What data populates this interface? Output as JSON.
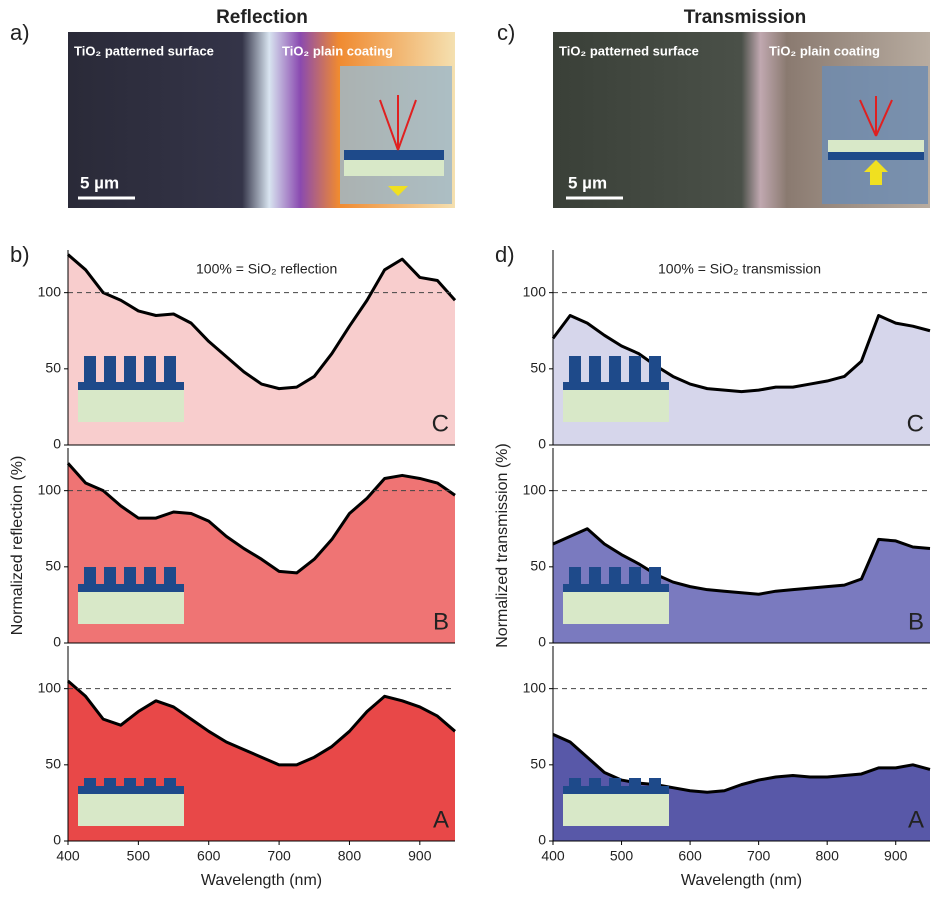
{
  "images": [
    {
      "label": "a)",
      "title": "Reflection",
      "left_text": "TiO₂ patterned surface",
      "right_text": "TiO₂ plain coating",
      "scale": "5 µm"
    },
    {
      "label": "c)",
      "title": "Transmission",
      "left_text": "TiO₂ patterned surface",
      "right_text": "TiO₂ plain coating",
      "scale": "5 µm"
    }
  ],
  "chart_data": [
    {
      "type": "area",
      "panel_label": "b)",
      "annotation": "100% = SiO₂ reflection",
      "sample": "C",
      "color": "#f8cdcd",
      "x": [
        400,
        425,
        450,
        475,
        500,
        525,
        550,
        575,
        600,
        625,
        650,
        675,
        700,
        725,
        750,
        775,
        800,
        825,
        850,
        875,
        900,
        925,
        950
      ],
      "values": [
        125,
        115,
        100,
        95,
        88,
        85,
        86,
        80,
        68,
        58,
        48,
        40,
        37,
        38,
        45,
        60,
        78,
        95,
        115,
        122,
        110,
        108,
        95
      ],
      "xlim": [
        400,
        950
      ],
      "ylim": [
        0,
        128
      ],
      "yticks": [
        0,
        50,
        100
      ],
      "hline": 100
    },
    {
      "type": "area",
      "sample": "B",
      "color": "#ef7474",
      "ylabel": "Normalized reflection (%)",
      "x": [
        400,
        425,
        450,
        475,
        500,
        525,
        550,
        575,
        600,
        625,
        650,
        675,
        700,
        725,
        750,
        775,
        800,
        825,
        850,
        875,
        900,
        925,
        950
      ],
      "values": [
        118,
        105,
        100,
        90,
        82,
        82,
        86,
        85,
        80,
        70,
        62,
        55,
        47,
        46,
        55,
        68,
        85,
        95,
        108,
        110,
        108,
        105,
        97
      ],
      "xlim": [
        400,
        950
      ],
      "ylim": [
        0,
        128
      ],
      "yticks": [
        0,
        50,
        100
      ],
      "hline": 100
    },
    {
      "type": "area",
      "sample": "A",
      "color": "#e84848",
      "xlabel": "Wavelength (nm)",
      "x": [
        400,
        425,
        450,
        475,
        500,
        525,
        550,
        575,
        600,
        625,
        650,
        675,
        700,
        725,
        750,
        775,
        800,
        825,
        850,
        875,
        900,
        925,
        950
      ],
      "values": [
        105,
        95,
        80,
        76,
        85,
        92,
        88,
        80,
        72,
        65,
        60,
        55,
        50,
        50,
        55,
        62,
        72,
        85,
        95,
        92,
        88,
        82,
        72
      ],
      "xlim": [
        400,
        950
      ],
      "ylim": [
        0,
        128
      ],
      "yticks": [
        0,
        50,
        100
      ],
      "xticks": [
        400,
        500,
        600,
        700,
        800,
        900
      ],
      "hline": 100
    },
    {
      "type": "area",
      "panel_label": "d)",
      "annotation": "100% = SiO₂ transmission",
      "sample": "C",
      "color": "#d6d6eb",
      "x": [
        400,
        425,
        450,
        475,
        500,
        525,
        550,
        575,
        600,
        625,
        650,
        675,
        700,
        725,
        750,
        775,
        800,
        825,
        850,
        875,
        900,
        925,
        950
      ],
      "values": [
        70,
        85,
        80,
        72,
        65,
        60,
        52,
        45,
        40,
        37,
        36,
        35,
        36,
        38,
        38,
        40,
        42,
        45,
        55,
        85,
        80,
        78,
        75
      ],
      "xlim": [
        400,
        950
      ],
      "ylim": [
        0,
        128
      ],
      "yticks": [
        0,
        50,
        100
      ],
      "hline": 100
    },
    {
      "type": "area",
      "sample": "B",
      "color": "#7a7abf",
      "ylabel": "Normalized transmission (%)",
      "x": [
        400,
        425,
        450,
        475,
        500,
        525,
        550,
        575,
        600,
        625,
        650,
        675,
        700,
        725,
        750,
        775,
        800,
        825,
        850,
        875,
        900,
        925,
        950
      ],
      "values": [
        65,
        70,
        75,
        65,
        58,
        52,
        45,
        40,
        37,
        35,
        34,
        33,
        32,
        34,
        35,
        36,
        37,
        38,
        42,
        68,
        67,
        63,
        62
      ],
      "xlim": [
        400,
        950
      ],
      "ylim": [
        0,
        128
      ],
      "yticks": [
        0,
        50,
        100
      ],
      "hline": 100
    },
    {
      "type": "area",
      "sample": "A",
      "color": "#5858a8",
      "xlabel": "Wavelength (nm)",
      "x": [
        400,
        425,
        450,
        475,
        500,
        525,
        550,
        575,
        600,
        625,
        650,
        675,
        700,
        725,
        750,
        775,
        800,
        825,
        850,
        875,
        900,
        925,
        950
      ],
      "values": [
        70,
        65,
        55,
        45,
        40,
        38,
        37,
        35,
        33,
        32,
        33,
        37,
        40,
        42,
        43,
        42,
        42,
        43,
        44,
        48,
        48,
        50,
        47
      ],
      "xlim": [
        400,
        950
      ],
      "ylim": [
        0,
        128
      ],
      "yticks": [
        0,
        50,
        100
      ],
      "xticks": [
        400,
        500,
        600,
        700,
        800,
        900
      ],
      "hline": 100
    }
  ]
}
